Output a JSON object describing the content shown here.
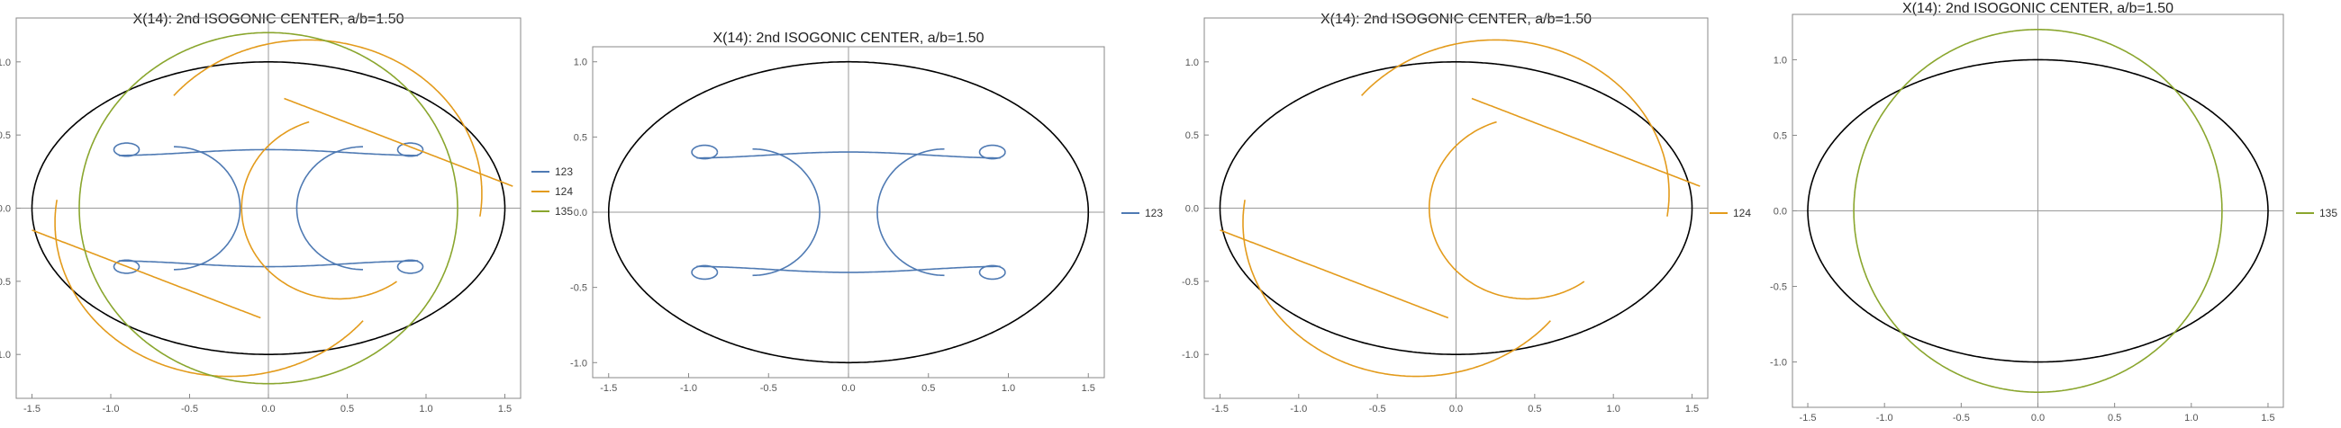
{
  "chart_data": [
    {
      "type": "line",
      "title": "X(14): 2nd ISOGONIC CENTER, a/b=1.50",
      "xlabel": "",
      "ylabel": "",
      "xlim": [
        -1.6,
        1.6
      ],
      "ylim": [
        -1.3,
        1.3
      ],
      "x_ticks": [
        "-1.5",
        "-1.0",
        "-0.5",
        "0.0",
        "0.5",
        "1.0",
        "1.5"
      ],
      "y_ticks": [
        "-1.0",
        "-0.5",
        "0.0",
        "0.5",
        "1.0"
      ],
      "grid": false,
      "legend_position": "right",
      "reference_curve": {
        "shape": "ellipse",
        "a": 1.5,
        "b": 1.0,
        "color": "#000000"
      },
      "series": [
        {
          "name": "123",
          "color": "#4f7ab3",
          "shape": "quartic-loops"
        },
        {
          "name": "124",
          "color": "#e39b1c",
          "shape": "crescent"
        },
        {
          "name": "135",
          "color": "#8aa62e",
          "shape": "circle",
          "radius": 1.2
        }
      ]
    },
    {
      "type": "line",
      "title": "X(14): 2nd ISOGONIC CENTER, a/b=1.50",
      "xlabel": "",
      "ylabel": "",
      "xlim": [
        -1.6,
        1.6
      ],
      "ylim": [
        -1.1,
        1.1
      ],
      "x_ticks": [
        "-1.5",
        "-1.0",
        "-0.5",
        "0.0",
        "0.5",
        "1.0",
        "1.5"
      ],
      "y_ticks": [
        "-1.0",
        "-0.5",
        "0.0",
        "0.5",
        "1.0"
      ],
      "grid": false,
      "legend_position": "right",
      "reference_curve": {
        "shape": "ellipse",
        "a": 1.5,
        "b": 1.0,
        "color": "#000000"
      },
      "series": [
        {
          "name": "123",
          "color": "#4f7ab3",
          "shape": "quartic-loops"
        }
      ]
    },
    {
      "type": "line",
      "title": "X(14): 2nd ISOGONIC CENTER, a/b=1.50",
      "xlabel": "",
      "ylabel": "",
      "xlim": [
        -1.6,
        1.6
      ],
      "ylim": [
        -1.3,
        1.3
      ],
      "x_ticks": [
        "-1.5",
        "-1.0",
        "-0.5",
        "0.0",
        "0.5",
        "1.0",
        "1.5"
      ],
      "y_ticks": [
        "-1.0",
        "-0.5",
        "0.0",
        "0.5",
        "1.0"
      ],
      "grid": false,
      "legend_position": "right",
      "reference_curve": {
        "shape": "ellipse",
        "a": 1.5,
        "b": 1.0,
        "color": "#000000"
      },
      "series": [
        {
          "name": "124",
          "color": "#e39b1c",
          "shape": "crescent"
        }
      ]
    },
    {
      "type": "line",
      "title": "X(14): 2nd ISOGONIC CENTER, a/b=1.50",
      "xlabel": "",
      "ylabel": "",
      "xlim": [
        -1.6,
        1.6
      ],
      "ylim": [
        -1.3,
        1.3
      ],
      "x_ticks": [
        "-1.5",
        "-1.0",
        "-0.5",
        "0.0",
        "0.5",
        "1.0",
        "1.5"
      ],
      "y_ticks": [
        "-1.0",
        "-0.5",
        "0.0",
        "0.5",
        "1.0"
      ],
      "grid": false,
      "legend_position": "right",
      "reference_curve": {
        "shape": "ellipse",
        "a": 1.5,
        "b": 1.0,
        "color": "#000000"
      },
      "series": [
        {
          "name": "135",
          "color": "#8aa62e",
          "shape": "circle",
          "radius": 1.2
        }
      ]
    }
  ]
}
